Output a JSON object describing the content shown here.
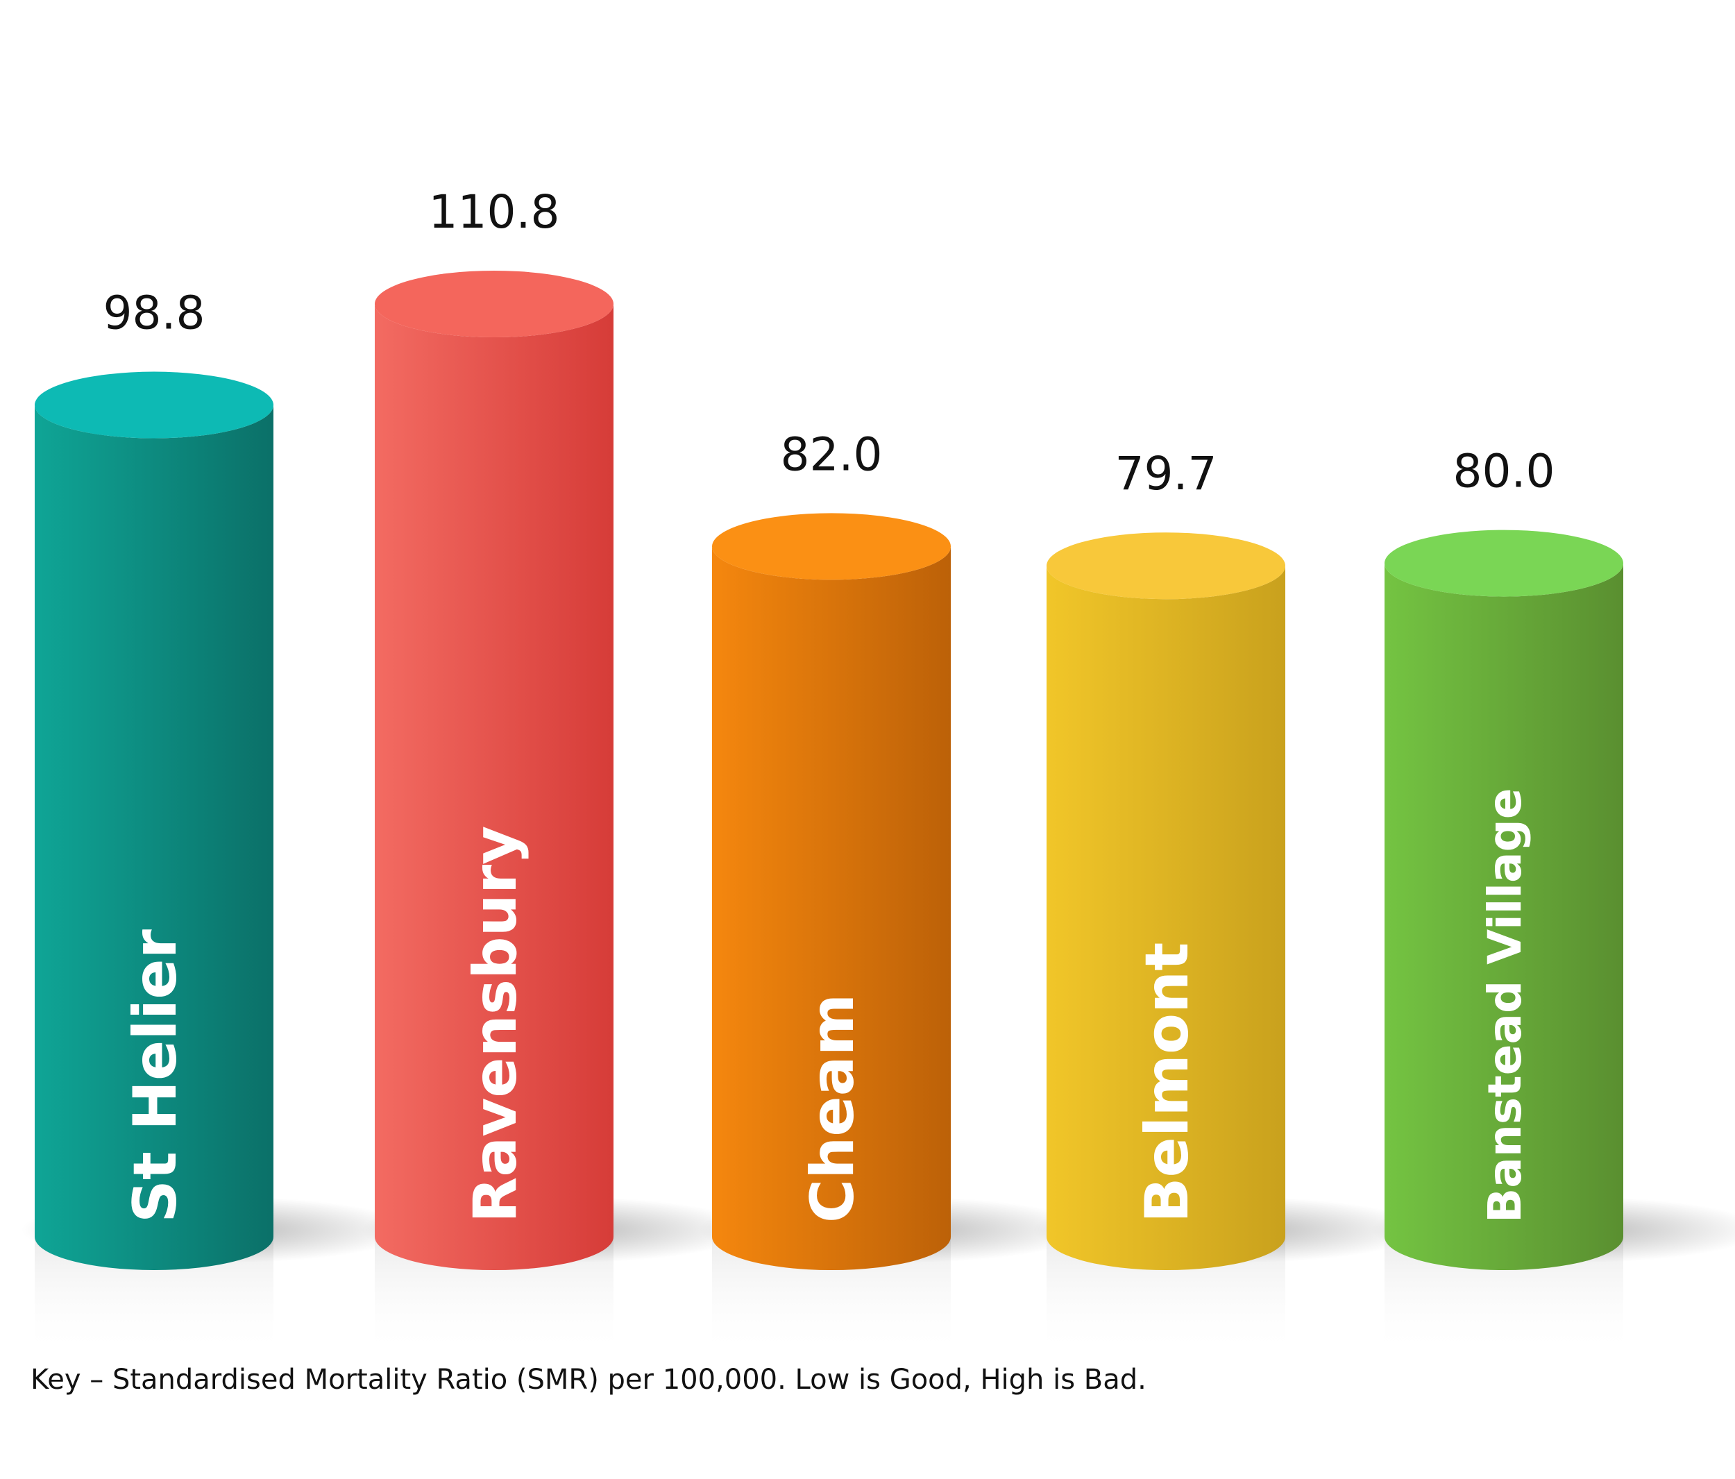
{
  "chart_data": {
    "type": "bar",
    "categories": [
      "St Helier",
      "Ravensbury",
      "Cheam",
      "Belmont",
      "Banstead Village"
    ],
    "values": [
      98.8,
      110.8,
      82.0,
      79.7,
      80.0
    ],
    "value_labels": [
      "98.8",
      "110.8",
      "82.0",
      "79.7",
      "80.0"
    ],
    "colors": {
      "St Helier": {
        "top": "#0DBAB4",
        "light": "#0FA596",
        "dark": "#0B7068"
      },
      "Ravensbury": {
        "top": "#F4665C",
        "light": "#F36B62",
        "dark": "#D63C38"
      },
      "Cheam": {
        "top": "#FB9014",
        "light": "#F5870E",
        "dark": "#BC6108"
      },
      "Belmont": {
        "top": "#F8C83A",
        "light": "#F1C629",
        "dark": "#C9A11D"
      },
      "Banstead Village": {
        "top": "#7AD655",
        "light": "#74C442",
        "dark": "#5A8F30"
      }
    },
    "style": "3d-cylinder",
    "legend": "none",
    "grid": false
  },
  "key_note": "Key – Standardised Mortality Ratio (SMR) per 100,000. Low is Good, High is Bad."
}
